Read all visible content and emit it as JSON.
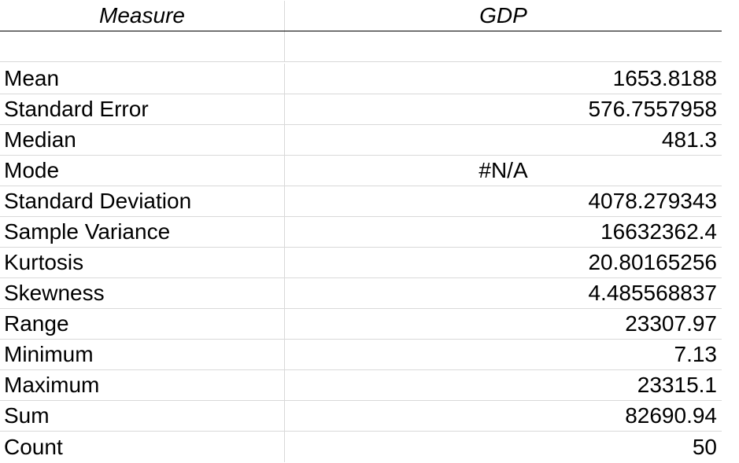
{
  "table": {
    "headers": [
      "Measure",
      "GDP"
    ],
    "rows": [
      {
        "label": "Mean",
        "value": "1653.8188",
        "align": "right"
      },
      {
        "label": "Standard Error",
        "value": "576.7557958",
        "align": "right"
      },
      {
        "label": "Median",
        "value": "481.3",
        "align": "right"
      },
      {
        "label": "Mode",
        "value": "#N/A",
        "align": "center"
      },
      {
        "label": "Standard Deviation",
        "value": "4078.279343",
        "align": "right"
      },
      {
        "label": "Sample Variance",
        "value": "16632362.4",
        "align": "right"
      },
      {
        "label": "Kurtosis",
        "value": "20.80165256",
        "align": "right"
      },
      {
        "label": "Skewness",
        "value": "4.485568837",
        "align": "right"
      },
      {
        "label": "Range",
        "value": "23307.97",
        "align": "right"
      },
      {
        "label": "Minimum",
        "value": "7.13",
        "align": "right"
      },
      {
        "label": "Maximum",
        "value": "23315.1",
        "align": "right"
      },
      {
        "label": "Sum",
        "value": "82690.94",
        "align": "right"
      },
      {
        "label": "Count",
        "value": "50",
        "align": "right"
      }
    ]
  }
}
